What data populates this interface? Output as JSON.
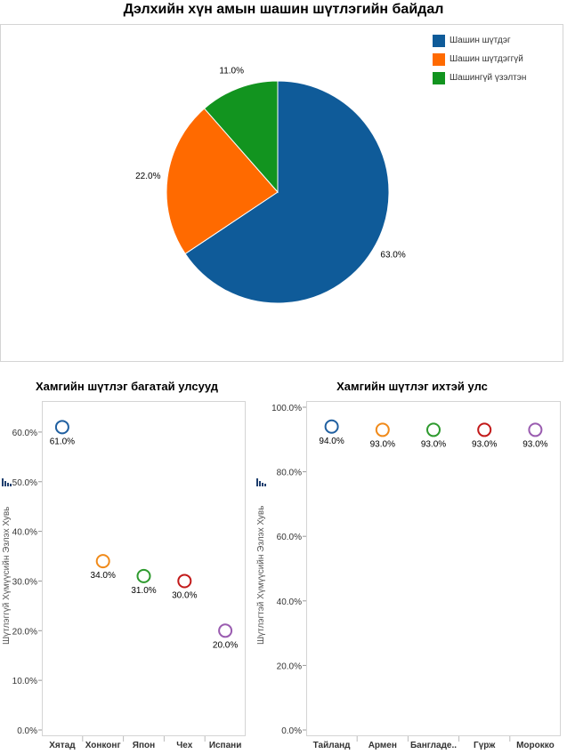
{
  "chart_data": [
    {
      "type": "pie",
      "title": "Дэлхийн хүн амын шашин шүтлэгийн байдал",
      "legend_position": "top-right",
      "slices": [
        {
          "name": "Шашин шүтдэг",
          "value": 63.0,
          "label": "63.0%",
          "color": "#0f5b99"
        },
        {
          "name": "Шашин шүтдэггүй",
          "value": 22.0,
          "label": "22.0%",
          "color": "#ff6a00"
        },
        {
          "name": "Шашингүй үзэлтэн",
          "value": 11.0,
          "label": "11.0%",
          "color": "#12941f"
        }
      ]
    },
    {
      "type": "scatter",
      "title": "Хамгийн шүтлэг багатай улсууд",
      "ylabel": "Шүтлэггүй Хүмүүсийн Эзлэх Хувь",
      "ylim": [
        0,
        65
      ],
      "yticks": [
        0,
        10,
        20,
        30,
        40,
        50,
        60
      ],
      "ytick_labels": [
        "0.0%",
        "10.0%",
        "20.0%",
        "30.0%",
        "40.0%",
        "50.0%",
        "60.0%"
      ],
      "grid": false,
      "categories": [
        "Хятад",
        "Хонконг",
        "Япон",
        "Чех",
        "Испани"
      ],
      "values": [
        61,
        34,
        31,
        30,
        20
      ],
      "labels": [
        "61.0%",
        "34.0%",
        "31.0%",
        "30.0%",
        "20.0%"
      ],
      "colors": [
        "#1f5fa0",
        "#f08a1a",
        "#2e9a2e",
        "#c21a1a",
        "#9a5cb0"
      ]
    },
    {
      "type": "scatter",
      "title": "Хамгийн шүтлэг ихтэй улс",
      "ylabel": "Шүтлэгтэй Хүмүүсийн Эзлэх Хувь",
      "ylim": [
        0,
        100
      ],
      "yticks": [
        0,
        20,
        40,
        60,
        80,
        100
      ],
      "ytick_labels": [
        "0.0%",
        "20.0%",
        "40.0%",
        "60.0%",
        "80.0%",
        "100.0%"
      ],
      "grid": false,
      "categories": [
        "Тайланд",
        "Армен",
        "Бангладе..",
        "Гүрж",
        "Морокко"
      ],
      "values": [
        94,
        93,
        93,
        93,
        93
      ],
      "labels": [
        "94.0%",
        "93.0%",
        "93.0%",
        "93.0%",
        "93.0%"
      ],
      "colors": [
        "#1f5fa0",
        "#f08a1a",
        "#2e9a2e",
        "#c21a1a",
        "#9a5cb0"
      ]
    }
  ]
}
